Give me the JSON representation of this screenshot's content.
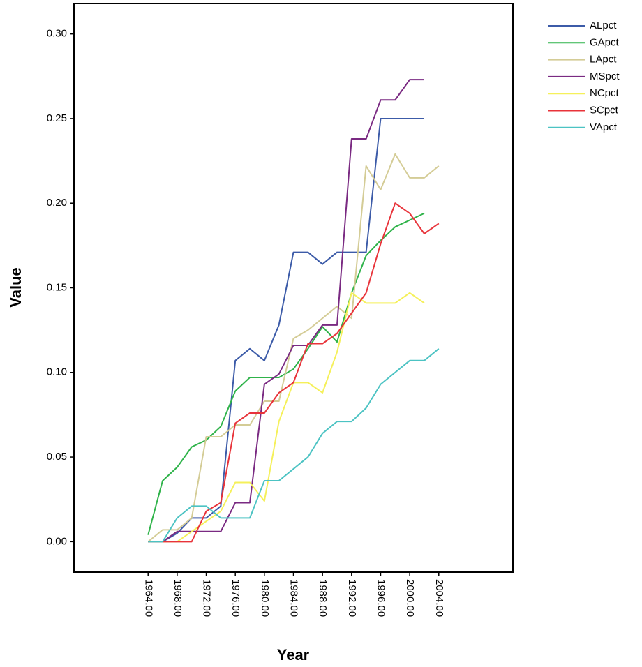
{
  "chart_data": {
    "type": "line",
    "xlabel": "Year",
    "ylabel": "Value",
    "x": [
      1964,
      1966,
      1968,
      1970,
      1972,
      1974,
      1976,
      1978,
      1980,
      1982,
      1984,
      1986,
      1988,
      1990,
      1992,
      1994,
      1996,
      1998,
      2000,
      2002,
      2004
    ],
    "xlim": [
      1953.8,
      2014.2
    ],
    "xticks": [
      {
        "value": 1964,
        "label": "1964.00"
      },
      {
        "value": 1968,
        "label": "1968.00"
      },
      {
        "value": 1972,
        "label": "1972.00"
      },
      {
        "value": 1976,
        "label": "1976.00"
      },
      {
        "value": 1980,
        "label": "1980.00"
      },
      {
        "value": 1984,
        "label": "1984.00"
      },
      {
        "value": 1988,
        "label": "1988.00"
      },
      {
        "value": 1992,
        "label": "1992.00"
      },
      {
        "value": 1996,
        "label": "1996.00"
      },
      {
        "value": 2000,
        "label": "2000.00"
      },
      {
        "value": 2004,
        "label": "2004.00"
      }
    ],
    "ylim": [
      -0.018,
      0.318
    ],
    "yticks": [
      {
        "value": 0,
        "label": "0.00"
      },
      {
        "value": 0.05,
        "label": "0.05"
      },
      {
        "value": 0.1,
        "label": "0.10"
      },
      {
        "value": 0.15,
        "label": "0.15"
      },
      {
        "value": 0.2,
        "label": "0.20"
      },
      {
        "value": 0.25,
        "label": "0.25"
      },
      {
        "value": 0.3,
        "label": "0.30"
      }
    ],
    "legend": "right",
    "series": [
      {
        "name": "ALpct",
        "color": "#3c5ba8",
        "values": [
          0,
          0,
          0.005,
          0.014,
          0.014,
          0.021,
          0.107,
          0.114,
          0.107,
          0.128,
          0.171,
          0.171,
          0.164,
          0.171,
          0.171,
          0.171,
          0.25,
          0.25,
          0.25,
          0.25,
          null
        ]
      },
      {
        "name": "GApct",
        "color": "#2fb34a",
        "values": [
          0.004,
          0.036,
          0.044,
          0.056,
          0.06,
          0.068,
          0.089,
          0.097,
          0.097,
          0.097,
          0.102,
          0.114,
          0.127,
          0.118,
          0.147,
          0.169,
          0.178,
          0.186,
          0.19,
          0.194,
          null
        ]
      },
      {
        "name": "LApct",
        "color": "#d4cc96",
        "values": [
          0,
          0.007,
          0.007,
          0.014,
          0.062,
          0.062,
          0.069,
          0.069,
          0.083,
          0.083,
          0.12,
          0.125,
          0.132,
          0.139,
          0.132,
          0.222,
          0.208,
          0.229,
          0.215,
          0.215,
          0.222
        ]
      },
      {
        "name": "MSpct",
        "color": "#7a2a82",
        "values": [
          0,
          0,
          0.006,
          0.006,
          0.006,
          0.006,
          0.023,
          0.023,
          0.093,
          0.099,
          0.116,
          0.116,
          0.128,
          0.128,
          0.238,
          0.238,
          0.261,
          0.261,
          0.273,
          0.273,
          null
        ]
      },
      {
        "name": "NCpct",
        "color": "#f5f05a",
        "values": [
          0,
          0,
          0,
          0.006,
          0.012,
          0.018,
          0.035,
          0.035,
          0.024,
          0.071,
          0.094,
          0.094,
          0.088,
          0.112,
          0.147,
          0.141,
          0.141,
          0.141,
          0.147,
          0.141,
          null
        ]
      },
      {
        "name": "SCpct",
        "color": "#e8333a",
        "values": [
          0,
          0,
          0,
          0,
          0.018,
          0.023,
          0.07,
          0.076,
          0.076,
          0.088,
          0.094,
          0.117,
          0.117,
          0.123,
          0.135,
          0.147,
          0.176,
          0.2,
          0.194,
          0.182,
          0.188
        ]
      },
      {
        "name": "VApct",
        "color": "#4cc3c3",
        "values": [
          0,
          0,
          0.014,
          0.021,
          0.021,
          0.014,
          0.014,
          0.014,
          0.036,
          0.036,
          0.043,
          0.05,
          0.064,
          0.071,
          0.071,
          0.079,
          0.093,
          0.1,
          0.107,
          0.107,
          0.114
        ]
      }
    ]
  }
}
